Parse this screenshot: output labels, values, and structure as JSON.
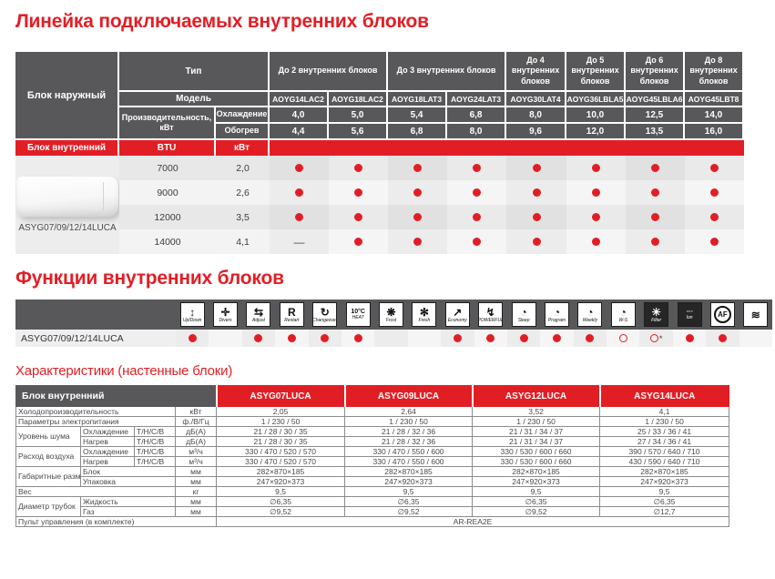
{
  "section1": {
    "title": "Линейка подключаемых внутренних блоков",
    "table": {
      "outdoor_label": "Блок наружный",
      "type_label": "Тип",
      "model_label": "Модель",
      "capacity_label": "Производительность, кВт",
      "cooling_label": "Охлаждение",
      "heating_label": "Обогрев",
      "groups": [
        {
          "label": "До 2 внутренних блоков",
          "span": 2
        },
        {
          "label": "До 3 внутренних блоков",
          "span": 2
        },
        {
          "label": "До 4 внутренних блоков",
          "span": 1
        },
        {
          "label": "До 5 внутренних блоков",
          "span": 1
        },
        {
          "label": "До 6 внутренних блоков",
          "span": 1
        },
        {
          "label": "До 8 внутренних блоков",
          "span": 1
        }
      ],
      "models": [
        "AOYG14LAC2",
        "AOYG18LAC2",
        "AOYG18LAT3",
        "AOYG24LAT3",
        "AOYG30LAT4",
        "AOYG36LBLA5",
        "AOYG45LBLA6",
        "AOYG45LBT8"
      ],
      "cooling": [
        "4,0",
        "5,0",
        "5,4",
        "6,8",
        "8,0",
        "10,0",
        "12,5",
        "14,0"
      ],
      "heating": [
        "4,4",
        "5,6",
        "6,8",
        "8,0",
        "9,6",
        "12,0",
        "13,5",
        "16,0"
      ],
      "indoor_label": "Блок внутренний",
      "btu_label": "BTU",
      "kwt_label": "кВт",
      "indoor_unit_name": "ASYG07/09/12/14LUCA",
      "rows": [
        {
          "btu": "7000",
          "kw": "2,0",
          "compat": [
            "dot",
            "dot",
            "dot",
            "dot",
            "dot",
            "dot",
            "dot",
            "dot"
          ]
        },
        {
          "btu": "9000",
          "kw": "2,6",
          "compat": [
            "dot",
            "dot",
            "dot",
            "dot",
            "dot",
            "dot",
            "dot",
            "dot"
          ]
        },
        {
          "btu": "12000",
          "kw": "3,5",
          "compat": [
            "dot",
            "dot",
            "dot",
            "dot",
            "dot",
            "dot",
            "dot",
            "dot"
          ]
        },
        {
          "btu": "14000",
          "kw": "4,1",
          "compat": [
            "dash",
            "dot",
            "dot",
            "dot",
            "dot",
            "dot",
            "dot",
            "dot"
          ]
        }
      ]
    }
  },
  "section2": {
    "title": "Функции внутренних блоков",
    "row_label": "ASYG07/09/12/14LUCA",
    "functions": [
      {
        "name": "updown-swing",
        "glyph": "↕",
        "label": "Up/Down",
        "dark": false,
        "dot": "filled"
      },
      {
        "name": "four-way-swing",
        "glyph": "✛",
        "label": "Divers",
        "dark": false,
        "dot": "none"
      },
      {
        "name": "adjust-airflow",
        "glyph": "⇆",
        "label": "Adjust",
        "dark": false,
        "dot": "filled"
      },
      {
        "name": "auto-restart",
        "glyph": "R",
        "label": "Restart",
        "dark": false,
        "dot": "filled"
      },
      {
        "name": "auto-changeover",
        "glyph": "↻",
        "label": "Changeover",
        "dark": false,
        "dot": "filled"
      },
      {
        "name": "10c-heat",
        "glyph": "10°C",
        "label": "HEAT",
        "dark": false,
        "dot": "filled",
        "small": true
      },
      {
        "name": "frost-fan",
        "glyph": "❋",
        "label": "Frost",
        "dark": false,
        "dot": "none"
      },
      {
        "name": "fresh-fan",
        "glyph": "✻",
        "label": "Fresh",
        "dark": false,
        "dot": "none"
      },
      {
        "name": "economy",
        "glyph": "↗",
        "label": "Economy",
        "dark": false,
        "dot": "filled"
      },
      {
        "name": "powerful",
        "glyph": "↯",
        "label": "POWERFUL",
        "dark": false,
        "dot": "filled"
      },
      {
        "name": "sleep-timer",
        "glyph": "◔",
        "label": "Sleep",
        "dark": false,
        "dot": "filled"
      },
      {
        "name": "program-timer",
        "glyph": "◔",
        "label": "Program",
        "dark": false,
        "dot": "filled"
      },
      {
        "name": "weekly-timer",
        "glyph": "◔",
        "label": "Weekly",
        "dark": false,
        "dot": "filled"
      },
      {
        "name": "ws-timer",
        "glyph": "◔",
        "label": "W-S",
        "dark": false,
        "dot": "outline"
      },
      {
        "name": "filter-sign",
        "glyph": "☀",
        "label": "Filter",
        "dark": true,
        "dot": "outline-star"
      },
      {
        "name": "ion",
        "glyph": "◦◦◦",
        "label": "Ion",
        "dark": true,
        "dot": "filled",
        "small": true
      },
      {
        "name": "apple-catechin-filter",
        "glyph": "AF",
        "label": "",
        "dark": false,
        "dot": "filled",
        "circle": true
      },
      {
        "name": "washable-panel",
        "glyph": "≋",
        "label": "",
        "dark": false,
        "dot": "none"
      }
    ]
  },
  "section3": {
    "title": "Характеристики (настенные блоки)",
    "header_label": "Блок внутренний",
    "models": [
      "ASYG07LUCA",
      "ASYG09LUCA",
      "ASYG12LUCA",
      "ASYG14LUCA"
    ],
    "rows": [
      {
        "c": [
          {
            "t": "Холодопроизводительность",
            "cs": 3,
            "cl": "lbl"
          },
          {
            "t": "кВт",
            "cl": "unit"
          },
          {
            "t": "2,05"
          },
          {
            "t": "2,64"
          },
          {
            "t": "3,52"
          },
          {
            "t": "4,1"
          }
        ]
      },
      {
        "c": [
          {
            "t": "Параметры электропитания",
            "cs": 3,
            "cl": "lbl"
          },
          {
            "t": "ф./В/Гц",
            "cl": "unit"
          },
          {
            "t": "1 / 230 / 50"
          },
          {
            "t": "1 / 230 / 50"
          },
          {
            "t": "1 / 230 / 50"
          },
          {
            "t": "1 / 230 / 50"
          }
        ]
      },
      {
        "c": [
          {
            "t": "Уровень шума",
            "rs": 2,
            "cl": "lbl"
          },
          {
            "t": "Охлаждение",
            "cl": "lbl"
          },
          {
            "t": "Т/Н/С/В",
            "cl": "lbl"
          },
          {
            "t": "дБ(А)",
            "cl": "unit"
          },
          {
            "t": "21 / 28 / 30 / 35"
          },
          {
            "t": "21 / 28 / 32 / 36"
          },
          {
            "t": "21 / 31 / 34 / 37"
          },
          {
            "t": "25 / 33 / 36 / 41"
          }
        ]
      },
      {
        "c": [
          {
            "t": "Нагрев",
            "cl": "lbl"
          },
          {
            "t": "Т/Н/С/В",
            "cl": "lbl"
          },
          {
            "t": "дБ(А)",
            "cl": "unit"
          },
          {
            "t": "21 / 28 / 30 / 35"
          },
          {
            "t": "21 / 28 / 32 / 36"
          },
          {
            "t": "21 / 31 / 34 / 37"
          },
          {
            "t": "27 / 34 / 36 / 41"
          }
        ]
      },
      {
        "c": [
          {
            "t": "Расход воздуха",
            "rs": 2,
            "cl": "lbl"
          },
          {
            "t": "Охлаждение",
            "cl": "lbl"
          },
          {
            "t": "Т/Н/С/В",
            "cl": "lbl"
          },
          {
            "t": "м³/ч",
            "cl": "unit"
          },
          {
            "t": "330 / 470 / 520 / 570"
          },
          {
            "t": "330 / 470 / 550 / 600"
          },
          {
            "t": "330 / 530 / 600 / 660"
          },
          {
            "t": "390 / 570 / 640 / 710"
          }
        ]
      },
      {
        "c": [
          {
            "t": "Нагрев",
            "cl": "lbl"
          },
          {
            "t": "Т/Н/С/В",
            "cl": "lbl"
          },
          {
            "t": "м³/ч",
            "cl": "unit"
          },
          {
            "t": "330 / 470 / 520 / 570"
          },
          {
            "t": "330 / 470 / 550 / 600"
          },
          {
            "t": "330 / 530 / 600 / 660"
          },
          {
            "t": "430 / 590 / 640 / 710"
          }
        ]
      },
      {
        "c": [
          {
            "t": "Габаритные размеры",
            "rs": 2,
            "cl": "lbl"
          },
          {
            "t": "Блок",
            "cs": 2,
            "cl": "lbl"
          },
          {
            "t": "мм",
            "cl": "unit"
          },
          {
            "t": "282×870×185"
          },
          {
            "t": "282×870×185"
          },
          {
            "t": "282×870×185"
          },
          {
            "t": "282×870×185"
          }
        ]
      },
      {
        "c": [
          {
            "t": "Упаковка",
            "cs": 2,
            "cl": "lbl"
          },
          {
            "t": "мм",
            "cl": "unit"
          },
          {
            "t": "247×920×373"
          },
          {
            "t": "247×920×373"
          },
          {
            "t": "247×920×373"
          },
          {
            "t": "247×920×373"
          }
        ]
      },
      {
        "c": [
          {
            "t": "Вес",
            "cs": 3,
            "cl": "lbl"
          },
          {
            "t": "кг",
            "cl": "unit"
          },
          {
            "t": "9,5"
          },
          {
            "t": "9,5"
          },
          {
            "t": "9,5"
          },
          {
            "t": "9,5"
          }
        ]
      },
      {
        "c": [
          {
            "t": "Диаметр трубок",
            "rs": 2,
            "cl": "lbl"
          },
          {
            "t": "Жидкость",
            "cs": 2,
            "cl": "lbl"
          },
          {
            "t": "мм",
            "cl": "unit"
          },
          {
            "t": "∅6,35"
          },
          {
            "t": "∅6,35"
          },
          {
            "t": "∅6,35"
          },
          {
            "t": "∅6,35"
          }
        ]
      },
      {
        "c": [
          {
            "t": "Газ",
            "cs": 2,
            "cl": "lbl"
          },
          {
            "t": "мм",
            "cl": "unit"
          },
          {
            "t": "∅9,52"
          },
          {
            "t": "∅9,52"
          },
          {
            "t": "∅9,52"
          },
          {
            "t": "∅12,7"
          }
        ]
      },
      {
        "c": [
          {
            "t": "Пульт управления (в комплекте)",
            "cs": 4,
            "cl": "lbl"
          },
          {
            "t": "AR-REA2E",
            "cs": 4
          }
        ]
      }
    ],
    "accent_red": "#e21e25",
    "header_gray": "#58585a"
  }
}
